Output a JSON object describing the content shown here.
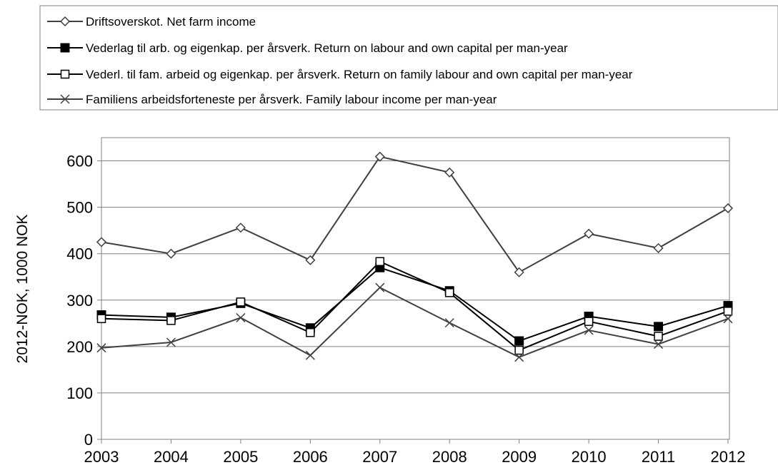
{
  "chart_data": {
    "type": "line",
    "title": "",
    "xlabel": "",
    "ylabel": "2012-NOK, 1000 NOK",
    "ylim": [
      0,
      650
    ],
    "y_ticks": [
      0,
      100,
      200,
      300,
      400,
      500,
      600
    ],
    "x": [
      "2003",
      "2004",
      "2005",
      "2006",
      "2007",
      "2008",
      "2009",
      "2010",
      "2011",
      "2012"
    ],
    "grid": "horizontal",
    "legend_position": "top",
    "series": [
      {
        "name": "Driftsoverskot. Net farm income",
        "marker": "diamond-open",
        "color": "#404040",
        "values": [
          425,
          400,
          456,
          386,
          609,
          575,
          360,
          443,
          412,
          498
        ]
      },
      {
        "name": "Vederlag til arb. og eigenkap. per årsverk. Return on labour and own capital per man-year",
        "marker": "square-filled",
        "color": "#000000",
        "values": [
          268,
          263,
          293,
          240,
          370,
          320,
          212,
          265,
          243,
          288
        ]
      },
      {
        "name": "Vederl. til fam. arbeid og eigenkap. per årsverk. Return on family labour and own capital per man-year",
        "marker": "square-open",
        "color": "#000000",
        "values": [
          260,
          256,
          296,
          230,
          383,
          316,
          192,
          254,
          222,
          276
        ]
      },
      {
        "name": "Familiens arbeidsforteneste per årsverk. Family labour income per man-year",
        "marker": "x",
        "color": "#404040",
        "values": [
          197,
          209,
          262,
          181,
          327,
          251,
          177,
          235,
          205,
          260
        ]
      }
    ]
  }
}
